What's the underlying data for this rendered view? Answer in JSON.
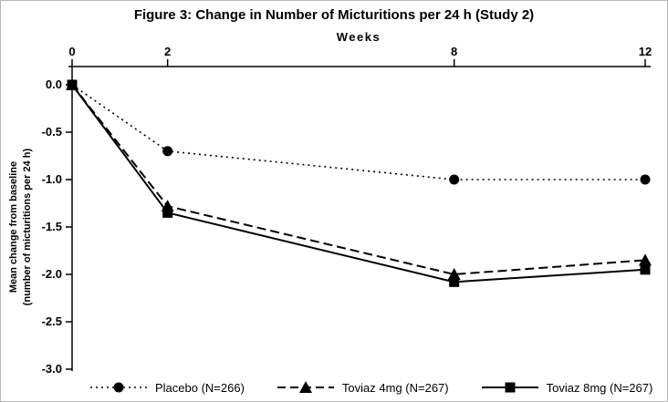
{
  "figure": {
    "title": "Figure 3: Change in Number of Micturitions per 24 h (Study 2)"
  },
  "chart_data": {
    "type": "line",
    "title": "Figure 3: Change in Number of Micturitions per 24 h (Study 2)",
    "xlabel": "Weeks",
    "ylabel": "Mean change from baseline (number of micturitions per 24 h)",
    "ylabel_line1": "Mean change from baseline",
    "ylabel_line2": "(number of micturitions per 24 h)",
    "x": [
      0,
      2,
      8,
      12
    ],
    "x_ticks": [
      0,
      2,
      8,
      12
    ],
    "xlim": [
      0,
      12
    ],
    "ylim": [
      -3.0,
      0.0
    ],
    "y_ticks": [
      0.0,
      -0.5,
      -1.0,
      -1.5,
      -2.0,
      -2.5,
      -3.0
    ],
    "grid": false,
    "legend_position": "bottom",
    "line_color": "#000000",
    "background_color": "#ffffff",
    "series": [
      {
        "name": "Placebo (N=266)",
        "marker": "circle",
        "line_style": "dotted",
        "values": [
          0.0,
          -0.7,
          -1.0,
          -1.0
        ]
      },
      {
        "name": "Toviaz 4mg (N=267)",
        "marker": "triangle",
        "line_style": "dashed",
        "values": [
          0.0,
          -1.28,
          -2.0,
          -1.85
        ]
      },
      {
        "name": "Toviaz 8mg (N=267)",
        "marker": "square",
        "line_style": "solid",
        "values": [
          0.0,
          -1.35,
          -2.08,
          -1.95
        ]
      }
    ]
  }
}
